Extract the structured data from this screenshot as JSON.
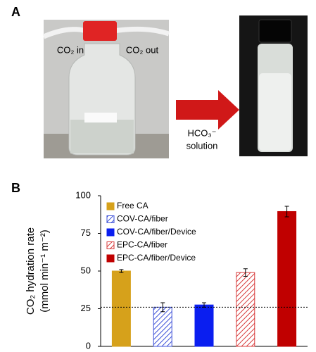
{
  "panel_a": {
    "label": "A",
    "inlet": "CO₂ in",
    "outlet": "CO₂ out",
    "product": "HCO₃⁻",
    "product_word": "solution"
  },
  "chart_data": {
    "type": "bar",
    "label": "B",
    "y_label": "CO₂ hydration rate",
    "y_unit": "(mmol min⁻¹ m⁻²)",
    "categories": [
      null,
      null,
      null,
      null,
      null
    ],
    "values": [
      50,
      26,
      27.5,
      49,
      89.5
    ],
    "errors": [
      1,
      3,
      1.5,
      2.5,
      3.5
    ],
    "legend": [
      "Free CA",
      "COV-CA/fiber",
      "COV-CA/fiber/Device",
      "EPC-CA/fiber",
      "EPC-CA/fiber/Device"
    ],
    "colors": [
      "#d6a11b",
      "#3b4fd8",
      "#0a1ef0",
      "#d83c3c",
      "#c00000"
    ],
    "hatched": [
      false,
      true,
      false,
      true,
      false
    ],
    "reference_line": 26,
    "ylim": [
      0,
      100
    ],
    "yticks": [
      0,
      25,
      50,
      75,
      100
    ]
  }
}
